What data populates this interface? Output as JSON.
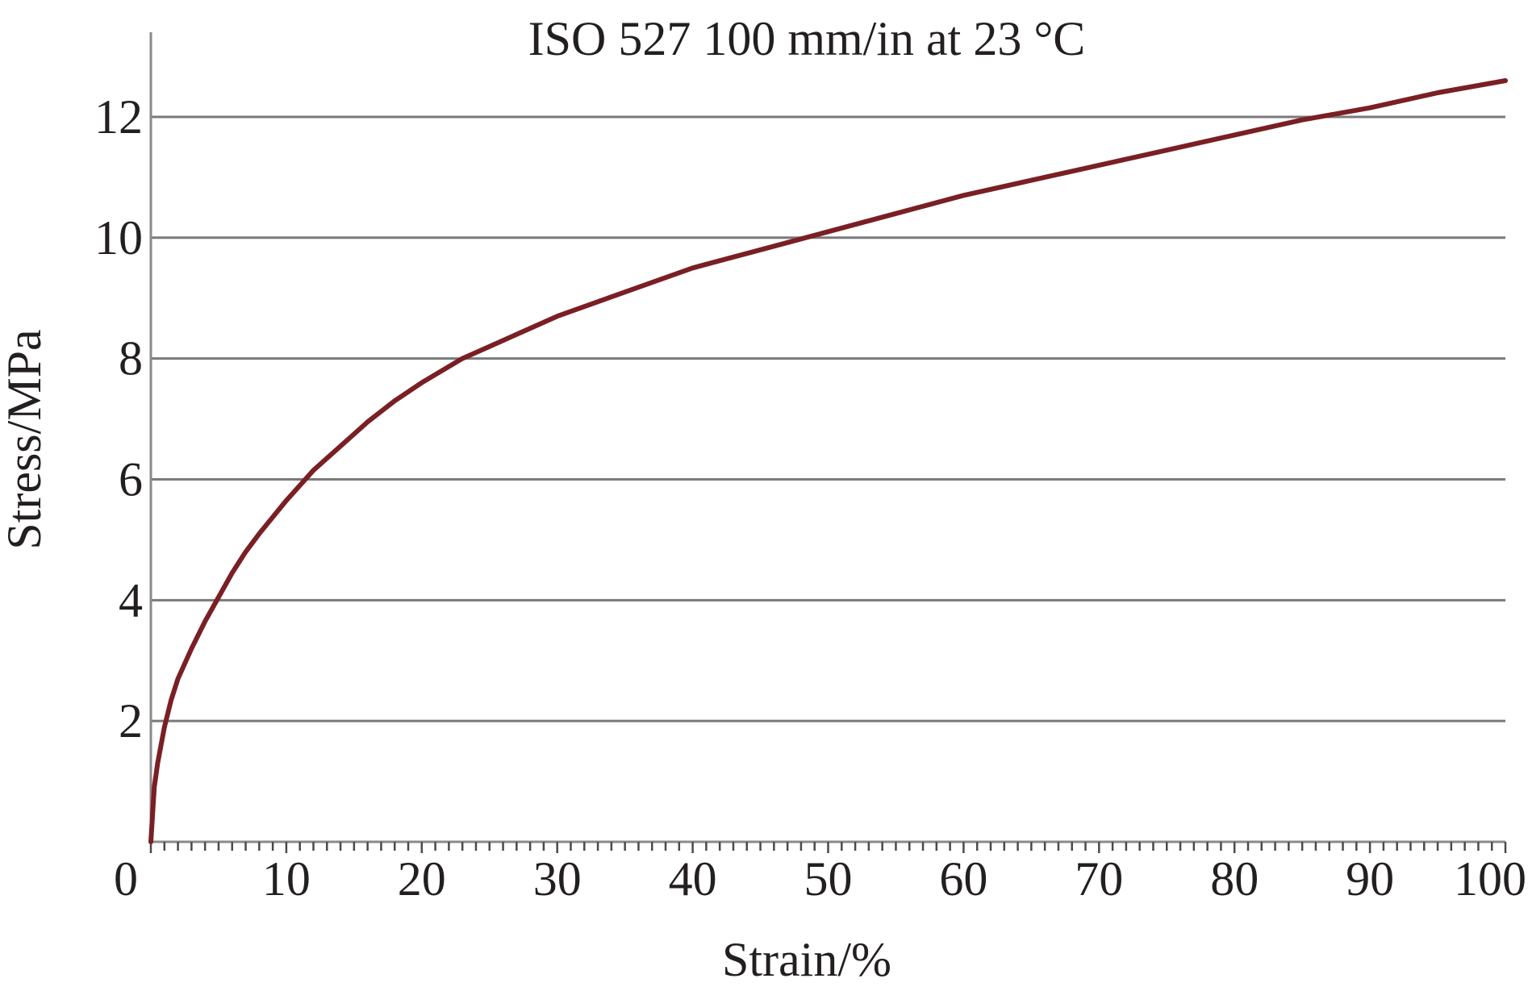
{
  "chart_data": {
    "type": "line",
    "title": "ISO 527 100 mm/in at 23 °C",
    "xlabel": "Strain/%",
    "ylabel": "Stress/MPa",
    "xlim": [
      0,
      100
    ],
    "ylim": [
      0,
      12.6
    ],
    "x_ticks": [
      0,
      10,
      20,
      30,
      40,
      50,
      60,
      70,
      80,
      90,
      100
    ],
    "x_tick_labels": [
      "0",
      "10",
      "20",
      "30",
      "40",
      "50",
      "60",
      "70",
      "80",
      "90",
      "100"
    ],
    "y_ticks": [
      2,
      4,
      6,
      8,
      10,
      12
    ],
    "y_tick_labels": [
      "2",
      "4",
      "6",
      "8",
      "10",
      "12"
    ],
    "grid": "horizontal",
    "colors": {
      "line": "#7a1f24",
      "grid": "#7a7a7a",
      "text": "#231f20"
    },
    "series": [
      {
        "x": [
          0,
          0.25,
          0.5,
          1,
          1.5,
          2,
          3,
          4,
          5,
          6,
          7,
          8,
          10,
          12,
          14,
          16,
          18,
          20,
          23,
          26,
          30,
          35,
          40,
          45,
          50,
          55,
          60,
          65,
          70,
          75,
          80,
          85,
          90,
          95,
          100
        ],
        "values": [
          0,
          0.9,
          1.3,
          1.9,
          2.35,
          2.7,
          3.2,
          3.65,
          4.05,
          4.45,
          4.8,
          5.1,
          5.65,
          6.15,
          6.55,
          6.95,
          7.3,
          7.6,
          8.0,
          8.3,
          8.7,
          9.1,
          9.5,
          9.8,
          10.1,
          10.4,
          10.7,
          10.95,
          11.2,
          11.45,
          11.7,
          11.95,
          12.15,
          12.4,
          12.6
        ]
      }
    ]
  }
}
